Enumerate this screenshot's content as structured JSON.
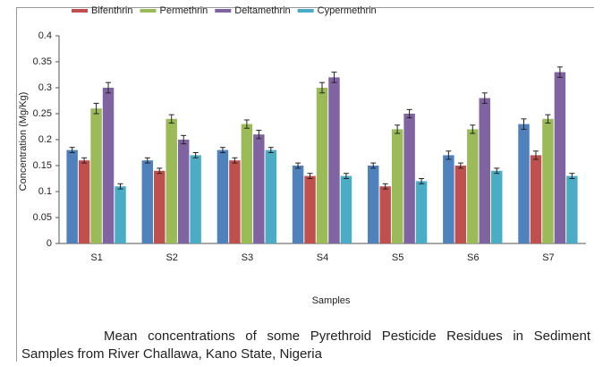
{
  "chart_data": {
    "type": "bar",
    "y_label": "Concentration (Mg/Kg)",
    "x_label": "Samples",
    "categories": [
      "S1",
      "S2",
      "S3",
      "S4",
      "S5",
      "S6",
      "S7"
    ],
    "series": [
      {
        "name": null,
        "color": "#4f81bd",
        "values": [
          0.18,
          0.16,
          0.18,
          0.15,
          0.15,
          0.17,
          0.23
        ],
        "errors": [
          0.005,
          0.005,
          0.005,
          0.005,
          0.005,
          0.008,
          0.01
        ]
      },
      {
        "name": "Bifenthrin",
        "color": "#c0504d",
        "values": [
          0.16,
          0.14,
          0.16,
          0.13,
          0.11,
          0.15,
          0.17
        ],
        "errors": [
          0.005,
          0.005,
          0.005,
          0.005,
          0.005,
          0.005,
          0.008
        ]
      },
      {
        "name": "Permethrin",
        "color": "#9bbb59",
        "values": [
          0.26,
          0.24,
          0.23,
          0.3,
          0.22,
          0.22,
          0.24
        ],
        "errors": [
          0.01,
          0.008,
          0.008,
          0.01,
          0.008,
          0.008,
          0.008
        ]
      },
      {
        "name": "Deltamethrin",
        "color": "#8064a2",
        "values": [
          0.3,
          0.2,
          0.21,
          0.32,
          0.25,
          0.28,
          0.33
        ],
        "errors": [
          0.01,
          0.008,
          0.008,
          0.01,
          0.008,
          0.01,
          0.01
        ]
      },
      {
        "name": "Cypermethrin",
        "color": "#4bacc6",
        "values": [
          0.11,
          0.17,
          0.18,
          0.13,
          0.12,
          0.14,
          0.13
        ],
        "errors": [
          0.005,
          0.005,
          0.005,
          0.005,
          0.005,
          0.005,
          0.005
        ]
      }
    ],
    "ylim": [
      0,
      0.4
    ],
    "yticks": [
      0,
      0.05,
      0.1,
      0.15,
      0.2,
      0.25,
      0.3,
      0.35,
      0.4
    ],
    "grid": false,
    "legend": "top",
    "caption": "Mean concentrations of some Pyrethroid Pesticide Residues in Sediment Samples from River Challawa, Kano State, Nigeria"
  }
}
